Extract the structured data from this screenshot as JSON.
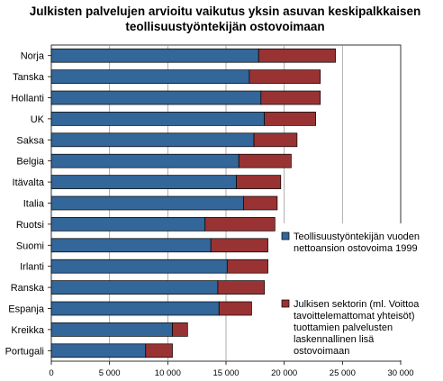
{
  "chart_data": {
    "type": "bar",
    "orientation": "horizontal",
    "stacked": true,
    "title_lines": [
      "Julkisten palvelujen arvioitu vaikutus yksin asuvan keskipalkkaisen",
      "teollisuustyöntekijän ostovoimaan"
    ],
    "categories": [
      "Norja",
      "Tanska",
      "Hollanti",
      "UK",
      "Saksa",
      "Belgia",
      "Itävalta",
      "Italia",
      "Ruotsi",
      "Suomi",
      "Irlanti",
      "Ranska",
      "Espanja",
      "Kreikka",
      "Portugali"
    ],
    "series": [
      {
        "name": "Teollisuustyöntekijän vuoden nettoansion ostovoima 1999",
        "name_lines": [
          "Teollisuustyöntekijän vuoden",
          "nettoansion ostovoima 1999"
        ],
        "color": "#336699",
        "values": [
          17800,
          17000,
          18000,
          18300,
          17400,
          16100,
          15900,
          16500,
          13200,
          13700,
          15100,
          14300,
          14400,
          10400,
          8100
        ]
      },
      {
        "name": "Julkisen sektorin (ml. Voittoa tavoittelemattomat yhteisöt) tuottamien palvelusten laskennallinen lisä ostovoimaan",
        "name_lines": [
          "Julkisen sektorin (ml. Voittoa",
          "tavoittelemattomat yhteisöt)",
          "tuottamien palvelusten",
          "laskennallinen lisä",
          "ostovoimaan"
        ],
        "color": "#993333",
        "values": [
          6600,
          6100,
          5100,
          4400,
          3700,
          4500,
          3800,
          2900,
          6000,
          4900,
          3500,
          4000,
          2800,
          1300,
          2300
        ]
      }
    ],
    "xlim": [
      0,
      30000
    ],
    "xticks": [
      0,
      5000,
      10000,
      15000,
      20000,
      25000,
      30000
    ],
    "xtick_labels": [
      "0",
      "5 000",
      "10 000",
      "15 000",
      "20 000",
      "25 000",
      "30 000"
    ],
    "grid": "vertical",
    "legend_position": "right",
    "xlabel": "",
    "ylabel": ""
  }
}
